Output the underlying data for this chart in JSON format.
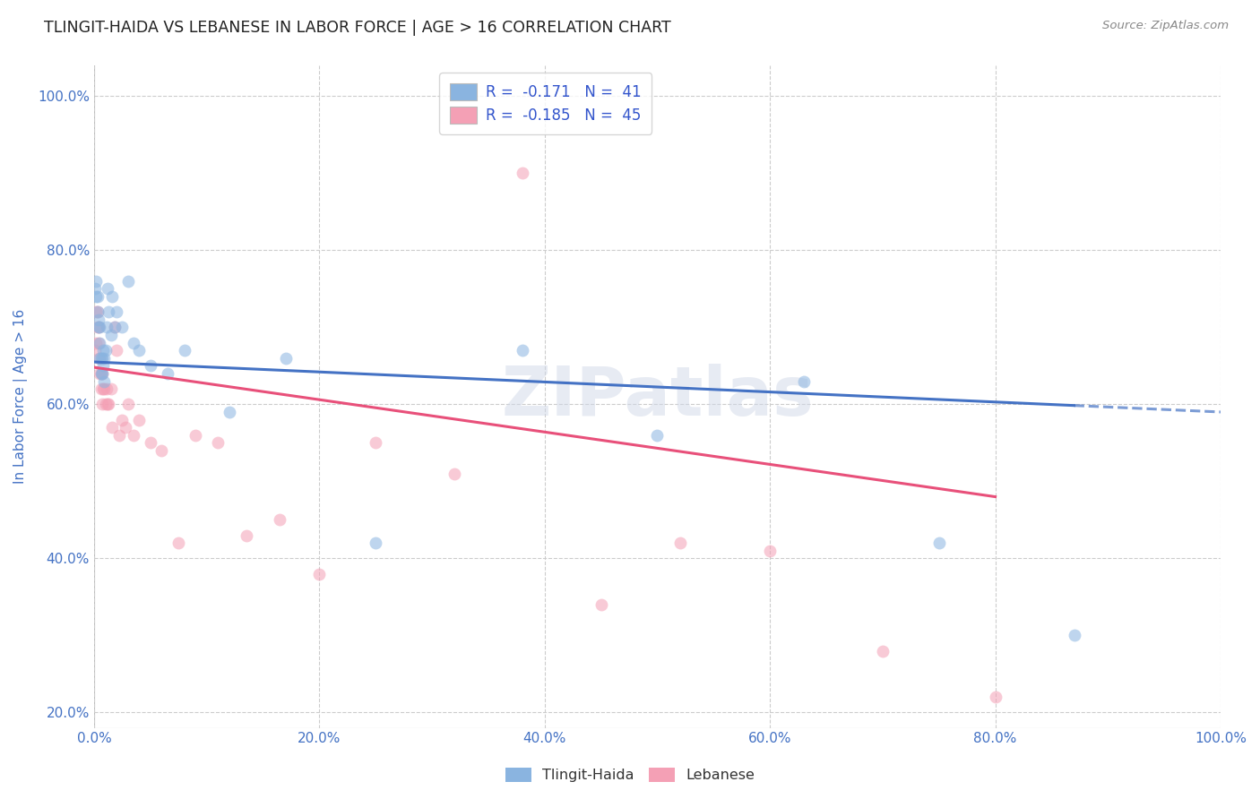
{
  "title": "TLINGIT-HAIDA VS LEBANESE IN LABOR FORCE | AGE > 16 CORRELATION CHART",
  "source": "Source: ZipAtlas.com",
  "ylabel": "In Labor Force | Age > 16",
  "background_color": "#ffffff",
  "plot_bg_color": "#ffffff",
  "grid_color": "#cccccc",
  "blue_color": "#8ab4e0",
  "pink_color": "#f4a0b5",
  "blue_line_color": "#4472c4",
  "pink_line_color": "#e8507a",
  "tick_color": "#4472c4",
  "watermark": "ZIPatlas",
  "tlingit_x": [
    0.001,
    0.002,
    0.002,
    0.003,
    0.003,
    0.004,
    0.004,
    0.005,
    0.005,
    0.005,
    0.006,
    0.006,
    0.007,
    0.007,
    0.008,
    0.008,
    0.009,
    0.009,
    0.01,
    0.011,
    0.012,
    0.013,
    0.015,
    0.016,
    0.018,
    0.02,
    0.025,
    0.03,
    0.035,
    0.04,
    0.05,
    0.065,
    0.08,
    0.12,
    0.17,
    0.25,
    0.38,
    0.5,
    0.63,
    0.75,
    0.87
  ],
  "tlingit_y": [
    0.75,
    0.76,
    0.74,
    0.74,
    0.72,
    0.71,
    0.7,
    0.7,
    0.68,
    0.66,
    0.66,
    0.64,
    0.66,
    0.64,
    0.67,
    0.65,
    0.63,
    0.66,
    0.67,
    0.7,
    0.75,
    0.72,
    0.69,
    0.74,
    0.7,
    0.72,
    0.7,
    0.76,
    0.68,
    0.67,
    0.65,
    0.64,
    0.67,
    0.59,
    0.66,
    0.42,
    0.67,
    0.56,
    0.63,
    0.42,
    0.3
  ],
  "lebanese_x": [
    0.001,
    0.002,
    0.002,
    0.003,
    0.003,
    0.004,
    0.004,
    0.005,
    0.005,
    0.006,
    0.006,
    0.007,
    0.007,
    0.008,
    0.009,
    0.01,
    0.011,
    0.012,
    0.013,
    0.015,
    0.016,
    0.018,
    0.02,
    0.022,
    0.025,
    0.028,
    0.03,
    0.035,
    0.04,
    0.05,
    0.06,
    0.075,
    0.09,
    0.11,
    0.135,
    0.165,
    0.2,
    0.25,
    0.32,
    0.45,
    0.38,
    0.52,
    0.6,
    0.7,
    0.8
  ],
  "lebanese_y": [
    0.67,
    0.72,
    0.68,
    0.72,
    0.7,
    0.7,
    0.68,
    0.66,
    0.64,
    0.64,
    0.62,
    0.64,
    0.6,
    0.62,
    0.62,
    0.6,
    0.62,
    0.6,
    0.6,
    0.62,
    0.57,
    0.7,
    0.67,
    0.56,
    0.58,
    0.57,
    0.6,
    0.56,
    0.58,
    0.55,
    0.54,
    0.42,
    0.56,
    0.55,
    0.43,
    0.45,
    0.38,
    0.55,
    0.51,
    0.34,
    0.9,
    0.42,
    0.41,
    0.28,
    0.22
  ],
  "xlim": [
    0.0,
    1.0
  ],
  "ylim": [
    0.18,
    1.04
  ],
  "xticks": [
    0.0,
    0.2,
    0.4,
    0.6,
    0.8,
    1.0
  ],
  "yticks": [
    0.2,
    0.4,
    0.6,
    0.8,
    1.0
  ],
  "xtick_labels": [
    "0.0%",
    "20.0%",
    "40.0%",
    "60.0%",
    "80.0%",
    "100.0%"
  ],
  "ytick_labels": [
    "20.0%",
    "40.0%",
    "60.0%",
    "80.0%",
    "100.0%"
  ],
  "marker_size": 100,
  "marker_alpha": 0.55,
  "line_width": 2.2,
  "blue_intercept": 0.655,
  "blue_slope": -0.065,
  "pink_intercept": 0.648,
  "pink_slope": -0.21
}
